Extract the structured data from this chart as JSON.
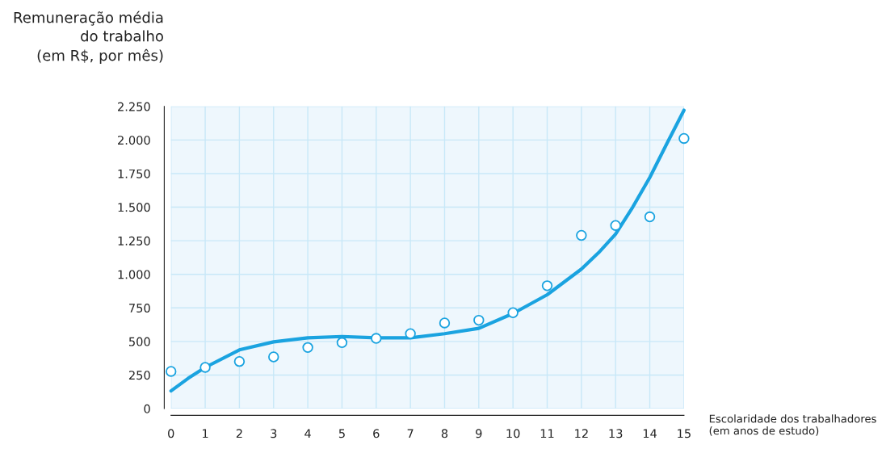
{
  "chart_data": {
    "type": "scatter",
    "ylabel": "Remuneração média\ndo trabalho\n(em R$, por mês)",
    "xlabel": "Escolaridade dos trabalhadores\n(em anos de estudo)",
    "series": [
      {
        "marker": "circle",
        "color": "#1aa3e0",
        "x": [
          0,
          1,
          2,
          3,
          4,
          5,
          6,
          7,
          8,
          9,
          10,
          11,
          12,
          13,
          14,
          15
        ],
        "values": [
          277,
          307,
          351,
          385,
          455,
          491,
          523,
          558,
          638,
          658,
          714,
          915,
          1290,
          1364,
          1428,
          2012
        ]
      },
      {
        "type": "line",
        "marker": "none",
        "color": "#1aa3e0",
        "x": [
          0,
          0.5,
          1,
          2,
          3,
          4,
          5,
          6,
          7,
          8,
          9,
          10,
          11,
          12,
          12.5,
          13,
          13.5,
          14,
          14.5,
          15
        ],
        "values": [
          132,
          225,
          307,
          437,
          497,
          527,
          537,
          527,
          527,
          558,
          598,
          708,
          848,
          1039,
          1160,
          1300,
          1500,
          1721,
          1974,
          2222
        ]
      }
    ],
    "xlim": [
      0,
      15
    ],
    "xticks": [
      0,
      1,
      2,
      3,
      4,
      5,
      6,
      7,
      8,
      9,
      10,
      11,
      12,
      13,
      14,
      15
    ],
    "ylim": [
      0,
      2250
    ],
    "yticks": [
      0,
      250,
      500,
      750,
      {
        "value": 1000,
        "label": "1.000"
      },
      {
        "value": 1250,
        "label": "1.250"
      },
      {
        "value": 1500,
        "label": "1.500"
      },
      {
        "value": 1750,
        "label": "1.750"
      },
      {
        "value": 2000,
        "label": "2.000"
      },
      {
        "value": 2250,
        "label": "2.250"
      }
    ],
    "grid": true
  }
}
